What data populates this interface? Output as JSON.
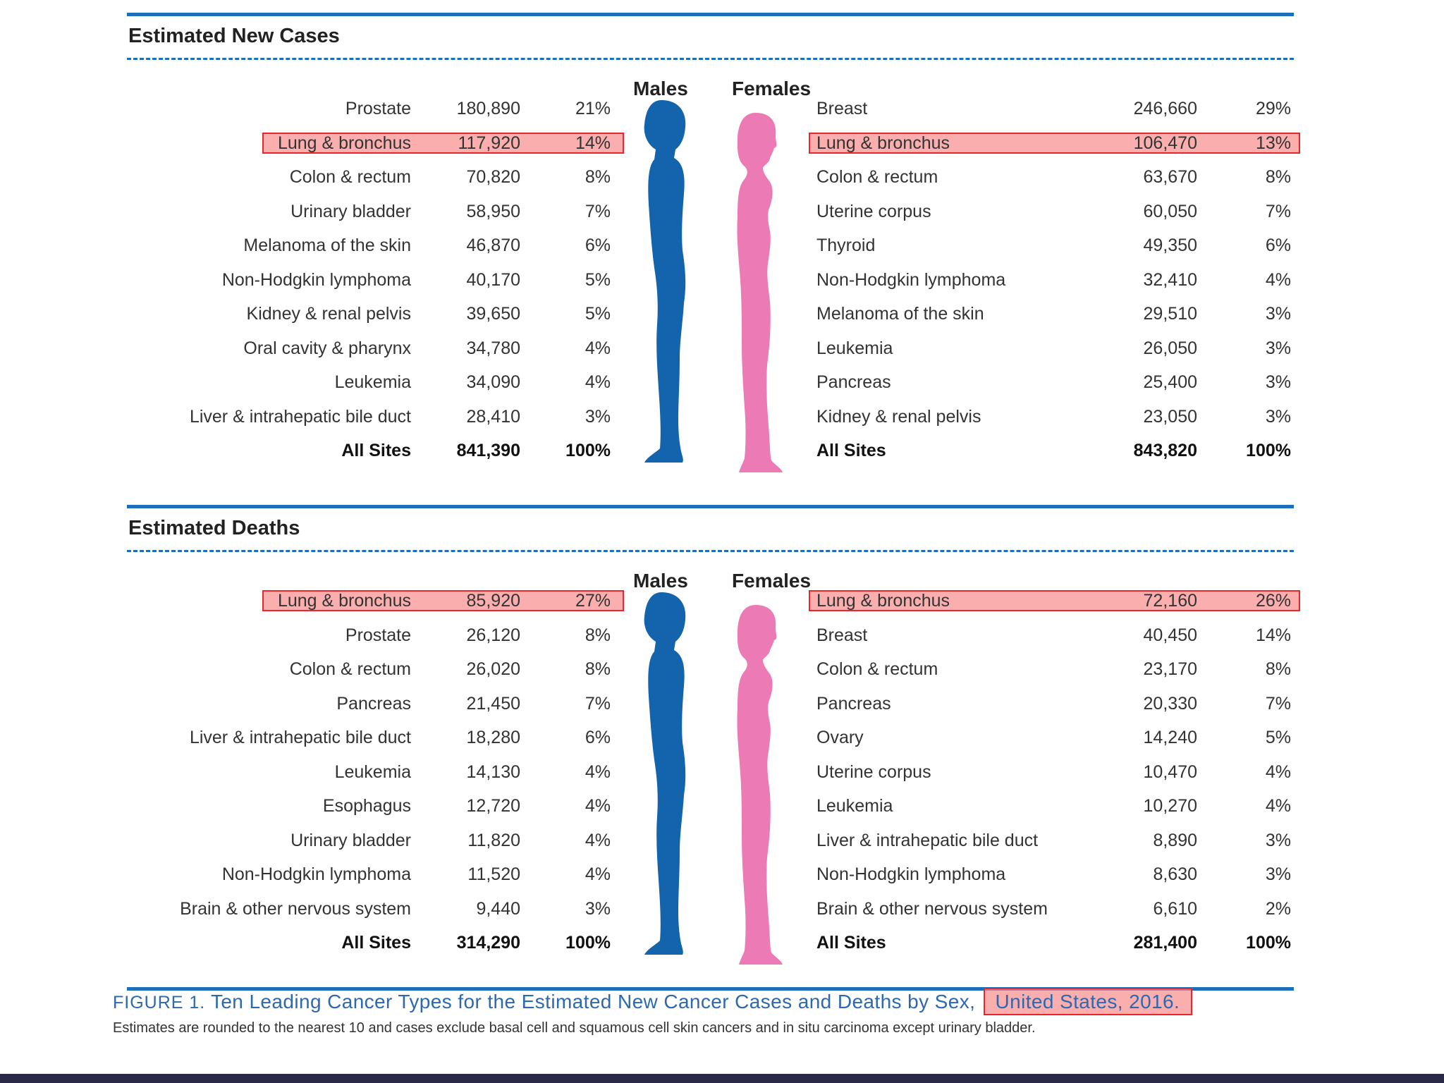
{
  "chart_data": [
    {
      "type": "table",
      "title": "Estimated New Cases",
      "males_label": "Males",
      "females_label": "Females",
      "males": [
        {
          "site": "Prostate",
          "value": "180,890",
          "pct": "21%"
        },
        {
          "site": "Lung & bronchus",
          "value": "117,920",
          "pct": "14%",
          "highlighted": true
        },
        {
          "site": "Colon & rectum",
          "value": "70,820",
          "pct": "8%"
        },
        {
          "site": "Urinary bladder",
          "value": "58,950",
          "pct": "7%"
        },
        {
          "site": "Melanoma of the skin",
          "value": "46,870",
          "pct": "6%"
        },
        {
          "site": "Non-Hodgkin lymphoma",
          "value": "40,170",
          "pct": "5%"
        },
        {
          "site": "Kidney & renal pelvis",
          "value": "39,650",
          "pct": "5%"
        },
        {
          "site": "Oral cavity & pharynx",
          "value": "34,780",
          "pct": "4%"
        },
        {
          "site": "Leukemia",
          "value": "34,090",
          "pct": "4%"
        },
        {
          "site": "Liver & intrahepatic bile duct",
          "value": "28,410",
          "pct": "3%"
        },
        {
          "site": "All Sites",
          "value": "841,390",
          "pct": "100%",
          "total": true
        }
      ],
      "females": [
        {
          "site": "Breast",
          "value": "246,660",
          "pct": "29%"
        },
        {
          "site": "Lung & bronchus",
          "value": "106,470",
          "pct": "13%",
          "highlighted": true
        },
        {
          "site": "Colon & rectum",
          "value": "63,670",
          "pct": "8%"
        },
        {
          "site": "Uterine corpus",
          "value": "60,050",
          "pct": "7%"
        },
        {
          "site": "Thyroid",
          "value": "49,350",
          "pct": "6%"
        },
        {
          "site": "Non-Hodgkin lymphoma",
          "value": "32,410",
          "pct": "4%"
        },
        {
          "site": "Melanoma of the skin",
          "value": "29,510",
          "pct": "3%"
        },
        {
          "site": "Leukemia",
          "value": "26,050",
          "pct": "3%"
        },
        {
          "site": "Pancreas",
          "value": "25,400",
          "pct": "3%"
        },
        {
          "site": "Kidney & renal pelvis",
          "value": "23,050",
          "pct": "3%"
        },
        {
          "site": "All Sites",
          "value": "843,820",
          "pct": "100%",
          "total": true
        }
      ]
    },
    {
      "type": "table",
      "title": "Estimated Deaths",
      "males_label": "Males",
      "females_label": "Females",
      "males": [
        {
          "site": "Lung & bronchus",
          "value": "85,920",
          "pct": "27%",
          "highlighted": true
        },
        {
          "site": "Prostate",
          "value": "26,120",
          "pct": "8%"
        },
        {
          "site": "Colon & rectum",
          "value": "26,020",
          "pct": "8%"
        },
        {
          "site": "Pancreas",
          "value": "21,450",
          "pct": "7%"
        },
        {
          "site": "Liver & intrahepatic bile duct",
          "value": "18,280",
          "pct": "6%"
        },
        {
          "site": "Leukemia",
          "value": "14,130",
          "pct": "4%"
        },
        {
          "site": "Esophagus",
          "value": "12,720",
          "pct": "4%"
        },
        {
          "site": "Urinary bladder",
          "value": "11,820",
          "pct": "4%"
        },
        {
          "site": "Non-Hodgkin lymphoma",
          "value": "11,520",
          "pct": "4%"
        },
        {
          "site": "Brain & other nervous system",
          "value": "9,440",
          "pct": "3%"
        },
        {
          "site": "All Sites",
          "value": "314,290",
          "pct": "100%",
          "total": true
        }
      ],
      "females": [
        {
          "site": "Lung & bronchus",
          "value": "72,160",
          "pct": "26%",
          "highlighted": true
        },
        {
          "site": "Breast",
          "value": "40,450",
          "pct": "14%"
        },
        {
          "site": "Colon & rectum",
          "value": "23,170",
          "pct": "8%"
        },
        {
          "site": "Pancreas",
          "value": "20,330",
          "pct": "7%"
        },
        {
          "site": "Ovary",
          "value": "14,240",
          "pct": "5%"
        },
        {
          "site": "Uterine corpus",
          "value": "10,470",
          "pct": "4%"
        },
        {
          "site": "Leukemia",
          "value": "10,270",
          "pct": "4%"
        },
        {
          "site": "Liver & intrahepatic bile duct",
          "value": "8,890",
          "pct": "3%"
        },
        {
          "site": "Non-Hodgkin lymphoma",
          "value": "8,630",
          "pct": "3%"
        },
        {
          "site": "Brain & other nervous system",
          "value": "6,610",
          "pct": "2%"
        },
        {
          "site": "All Sites",
          "value": "281,400",
          "pct": "100%",
          "total": true
        }
      ]
    }
  ],
  "caption": {
    "label": "FIGURE 1.",
    "title": "Ten Leading Cancer Types for the Estimated New Cancer Cases and Deaths by Sex,",
    "highlighted_text": "United States, 2016.",
    "note": "Estimates are rounded to the nearest 10 and cases exclude basal cell and squamous cell skin cancers and in situ carcinoma except urinary bladder."
  },
  "colors": {
    "rule": "#1d6fba",
    "male": "#1464ad",
    "female": "#ec7ab5",
    "highlight_border": "#e8262b",
    "caption": "#2d68b0"
  }
}
